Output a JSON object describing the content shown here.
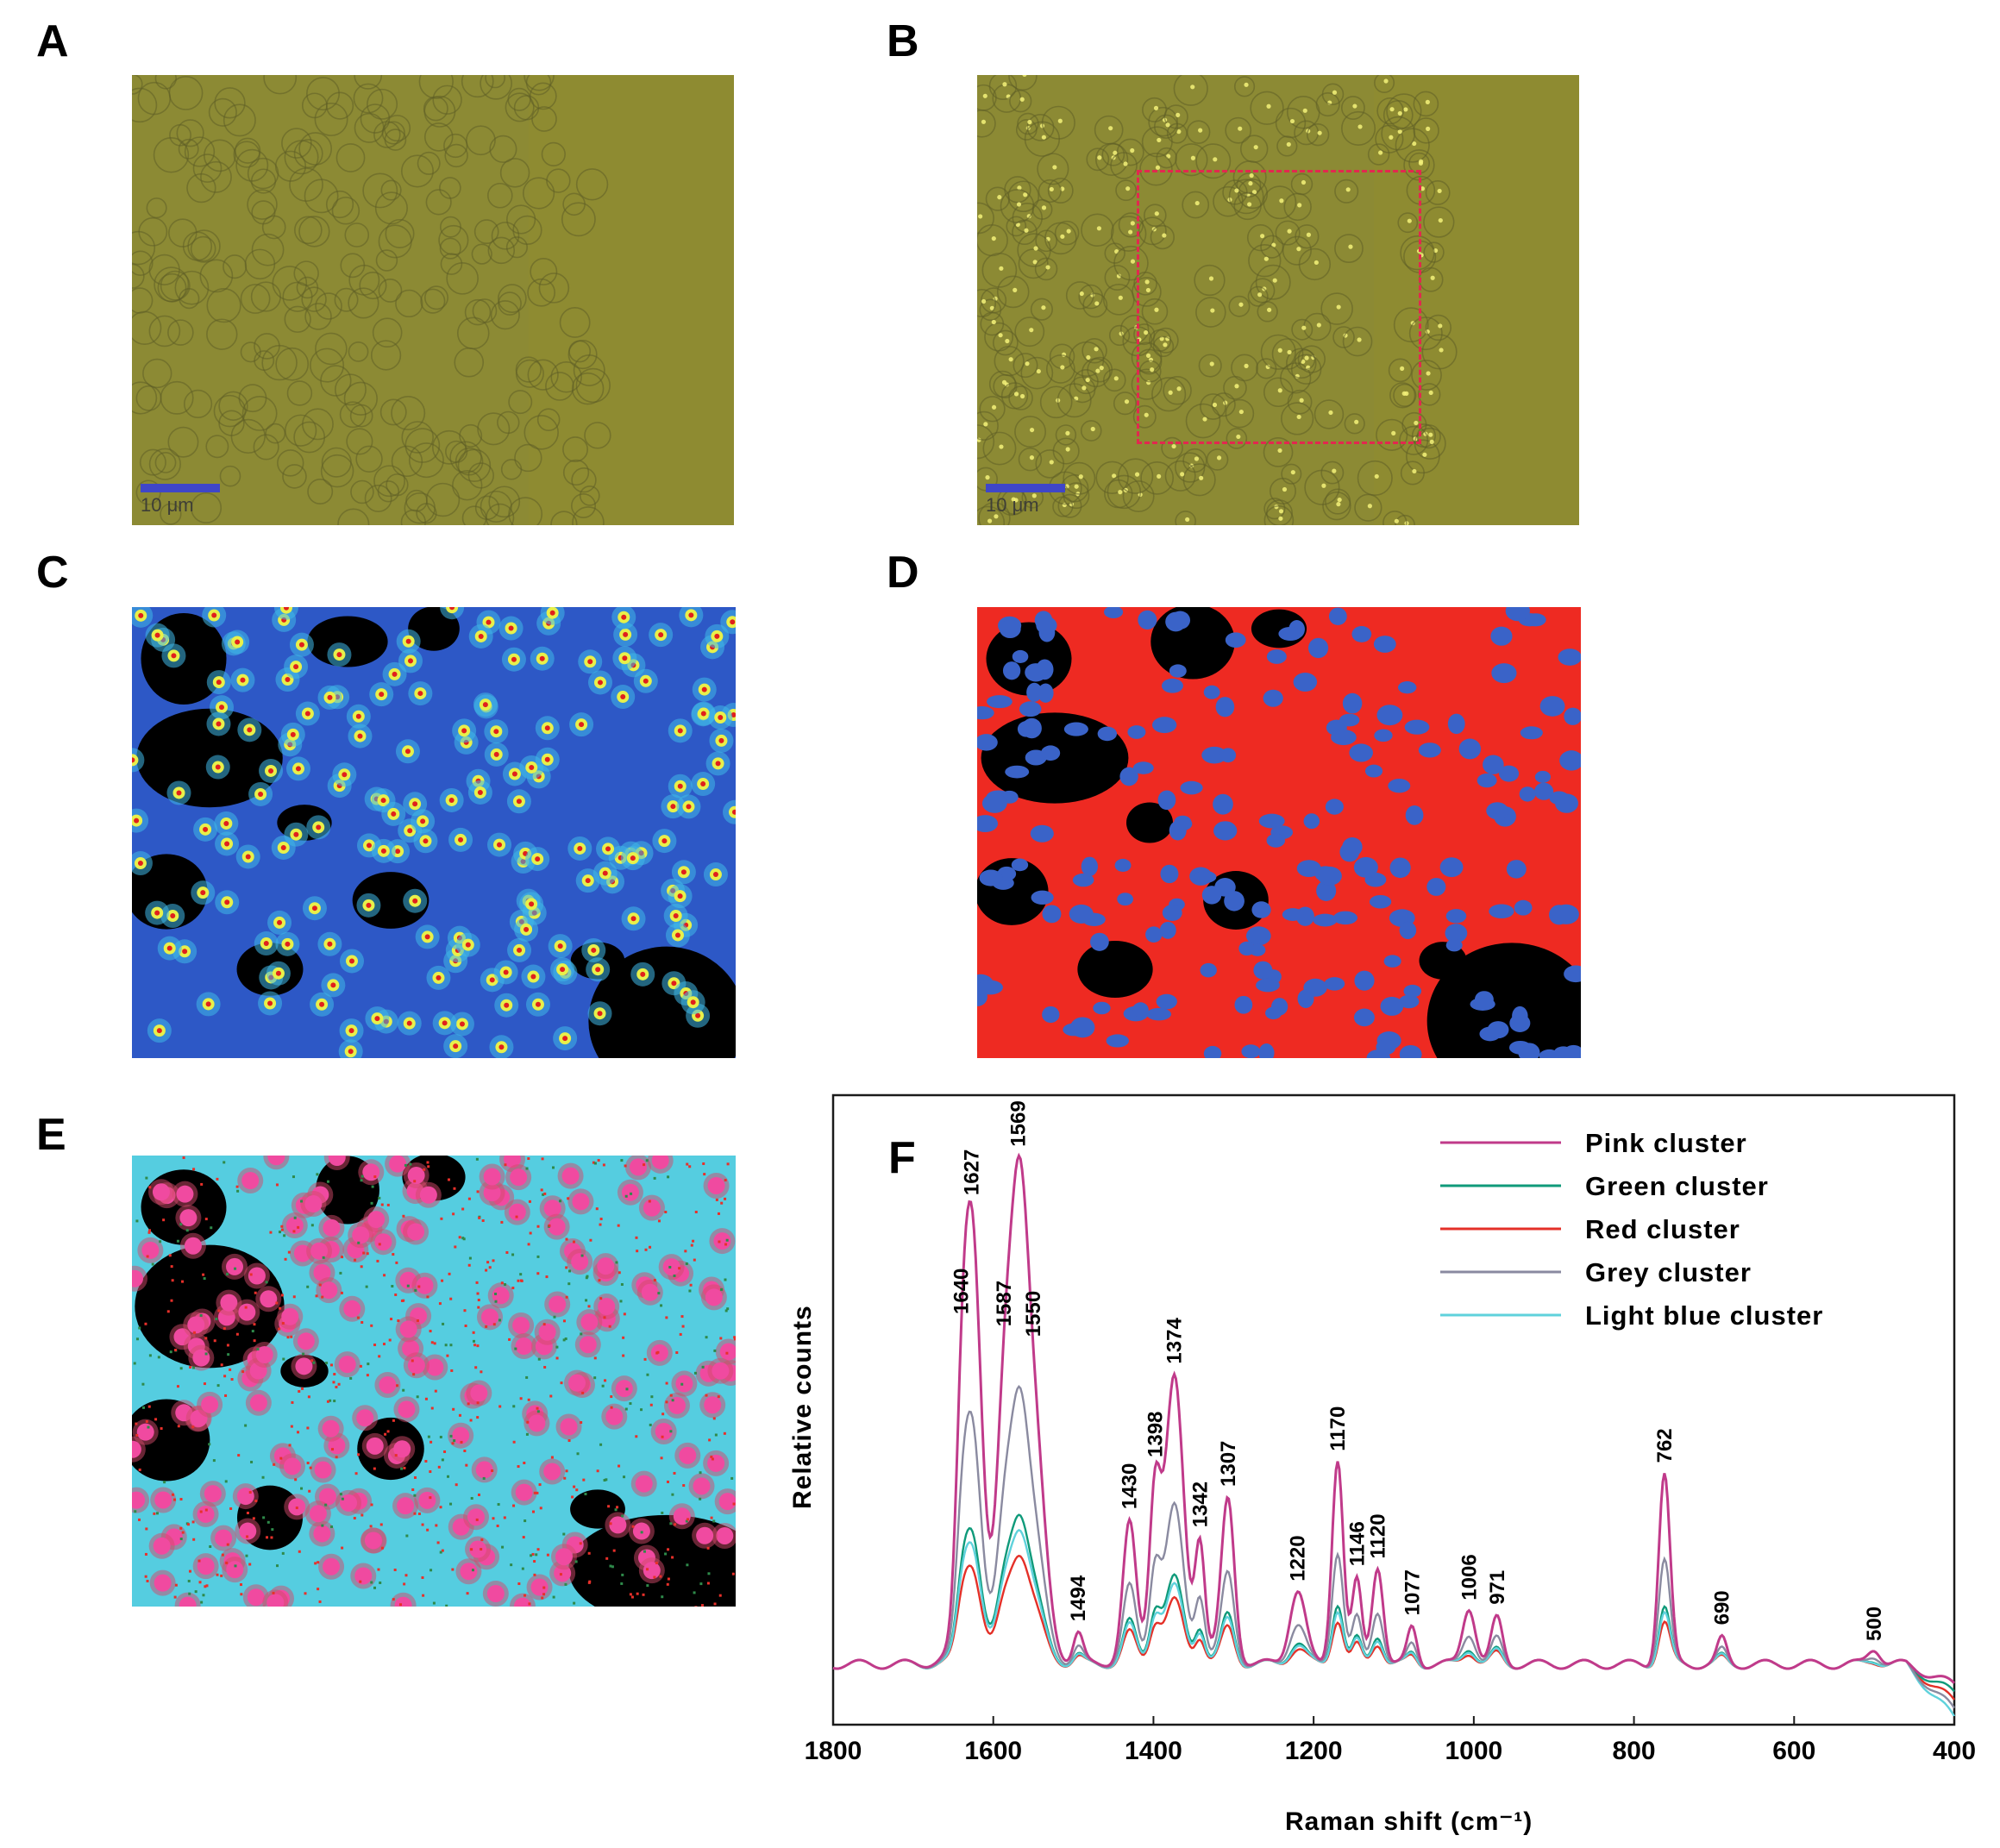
{
  "figure": {
    "panels": [
      {
        "label": "A",
        "scale_bar": "10 μm"
      },
      {
        "label": "B",
        "scale_bar": "10 μm"
      },
      {
        "label": "C"
      },
      {
        "label": "D"
      },
      {
        "label": "E"
      },
      {
        "label": "F"
      }
    ],
    "colors": {
      "brightfield": "#8c8a34",
      "map_blue": "#2d58c6",
      "map_red": "#ee2a22",
      "map_cyan": "#55cde0",
      "map_pink": "#f04aa0",
      "roi": "#e2284f"
    }
  },
  "chart_data": {
    "type": "line",
    "panel": "F",
    "xlabel": "Raman shift (cm⁻¹)",
    "ylabel": "Relative counts",
    "xlim": [
      1800,
      400
    ],
    "x_reversed": true,
    "xticks": [
      1800,
      1600,
      1400,
      1200,
      1000,
      800,
      600,
      400
    ],
    "legend_position": "top-right",
    "series": [
      {
        "name": "Pink cluster",
        "color": "#c03a8a",
        "scale": 1.0
      },
      {
        "name": "Green cluster",
        "color": "#0f9a7a",
        "scale": 0.3
      },
      {
        "name": "Red cluster",
        "color": "#e43028",
        "scale": 0.22
      },
      {
        "name": "Grey cluster",
        "color": "#8a8aa0",
        "scale": 0.55
      },
      {
        "name": "Light blue cluster",
        "color": "#5fd2dc",
        "scale": 0.27
      }
    ],
    "peaks": [
      {
        "x": 1640,
        "label": "1640",
        "height": 0.28,
        "width": 7
      },
      {
        "x": 1627,
        "label": "1627",
        "height": 1.0,
        "width": 11
      },
      {
        "x": 1587,
        "label": "1587",
        "height": 0.42,
        "width": 9
      },
      {
        "x": 1569,
        "label": "1569",
        "height": 0.88,
        "width": 11
      },
      {
        "x": 1550,
        "label": "1550",
        "height": 0.5,
        "width": 14
      },
      {
        "x": 1494,
        "label": "1494",
        "height": 0.07,
        "width": 6
      },
      {
        "x": 1430,
        "label": "1430",
        "height": 0.32,
        "width": 8
      },
      {
        "x": 1398,
        "label": "1398",
        "height": 0.38,
        "width": 7
      },
      {
        "x": 1374,
        "label": "1374",
        "height": 0.63,
        "width": 11
      },
      {
        "x": 1342,
        "label": "1342",
        "height": 0.26,
        "width": 6
      },
      {
        "x": 1307,
        "label": "1307",
        "height": 0.38,
        "width": 8
      },
      {
        "x": 1220,
        "label": "1220",
        "height": 0.18,
        "width": 10
      },
      {
        "x": 1170,
        "label": "1170",
        "height": 0.5,
        "width": 7
      },
      {
        "x": 1146,
        "label": "1146",
        "height": 0.2,
        "width": 6
      },
      {
        "x": 1120,
        "label": "1120",
        "height": 0.24,
        "width": 7
      },
      {
        "x": 1077,
        "label": "1077",
        "height": 0.09,
        "width": 6
      },
      {
        "x": 1006,
        "label": "1006",
        "height": 0.14,
        "width": 8
      },
      {
        "x": 971,
        "label": "971",
        "height": 0.11,
        "width": 7
      },
      {
        "x": 762,
        "label": "762",
        "height": 0.46,
        "width": 7
      },
      {
        "x": 690,
        "label": "690",
        "height": 0.06,
        "width": 6
      },
      {
        "x": 500,
        "label": "500",
        "height": 0.04,
        "width": 8
      }
    ]
  }
}
